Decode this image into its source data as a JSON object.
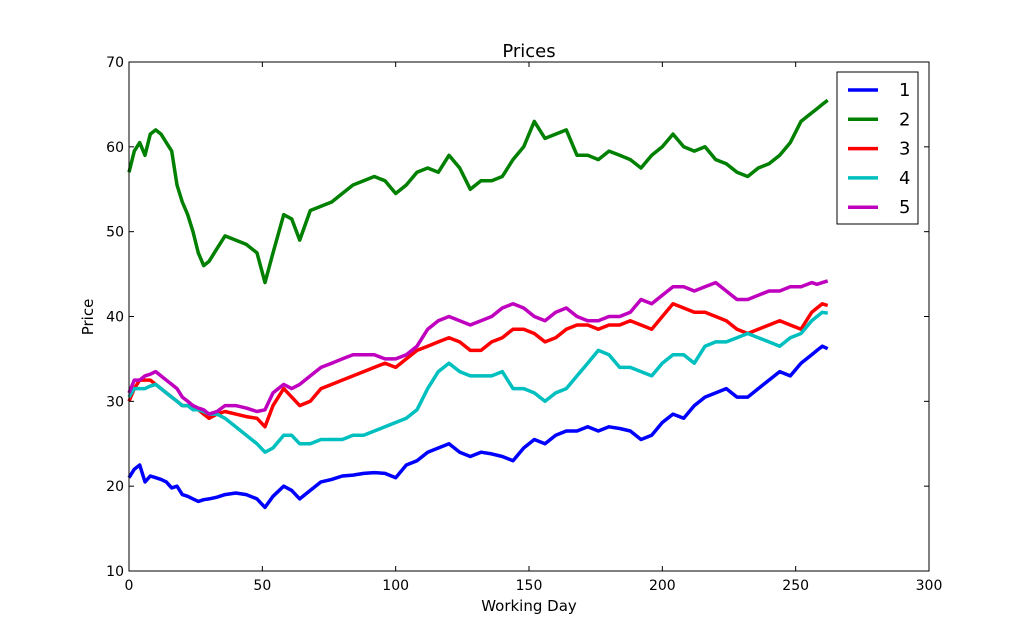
{
  "chart_data": {
    "type": "line",
    "title": "Prices",
    "xlabel": "Working Day",
    "ylabel": "Price",
    "xlim": [
      0,
      300
    ],
    "ylim": [
      10,
      70
    ],
    "xticks": [
      0,
      50,
      100,
      150,
      200,
      250,
      300
    ],
    "yticks": [
      10,
      20,
      30,
      40,
      50,
      60,
      70
    ],
    "grid": false,
    "legend_position": "top-right",
    "series": [
      {
        "name": "1",
        "color": "#0000ff",
        "x": [
          0,
          2,
          4,
          6,
          8,
          10,
          12,
          14,
          16,
          18,
          20,
          22,
          24,
          26,
          28,
          30,
          33,
          36,
          40,
          44,
          48,
          51,
          54,
          58,
          61,
          64,
          68,
          72,
          76,
          80,
          84,
          88,
          92,
          96,
          100,
          104,
          108,
          112,
          116,
          120,
          124,
          128,
          132,
          136,
          140,
          144,
          148,
          152,
          156,
          160,
          164,
          168,
          172,
          176,
          180,
          184,
          188,
          192,
          196,
          200,
          204,
          208,
          212,
          216,
          220,
          224,
          228,
          232,
          236,
          240,
          244,
          248,
          252,
          256,
          258,
          260,
          262
        ],
        "y": [
          21.0,
          22.0,
          22.5,
          20.5,
          21.2,
          21.0,
          20.8,
          20.5,
          19.8,
          20.0,
          19.0,
          18.8,
          18.5,
          18.2,
          18.4,
          18.5,
          18.7,
          19.0,
          19.2,
          19.0,
          18.5,
          17.5,
          18.8,
          20.0,
          19.5,
          18.5,
          19.5,
          20.5,
          20.8,
          21.2,
          21.3,
          21.5,
          21.6,
          21.5,
          21.0,
          22.5,
          23.0,
          24.0,
          24.5,
          25.0,
          24.0,
          23.5,
          24.0,
          23.8,
          23.5,
          23.0,
          24.5,
          25.5,
          25.0,
          26.0,
          26.5,
          26.5,
          27.0,
          26.5,
          27.0,
          26.8,
          26.5,
          25.5,
          26.0,
          27.5,
          28.5,
          28.0,
          29.5,
          30.5,
          31.0,
          31.5,
          30.5,
          30.5,
          31.5,
          32.5,
          33.5,
          33.0,
          34.5,
          35.5,
          36.0,
          36.5,
          36.2
        ]
      },
      {
        "name": "2",
        "color": "#008000",
        "x": [
          0,
          2,
          4,
          6,
          8,
          10,
          12,
          14,
          16,
          18,
          20,
          22,
          24,
          26,
          28,
          30,
          33,
          36,
          40,
          44,
          48,
          51,
          54,
          58,
          61,
          64,
          68,
          72,
          76,
          80,
          84,
          88,
          92,
          96,
          100,
          104,
          108,
          112,
          116,
          120,
          124,
          128,
          132,
          136,
          140,
          144,
          148,
          152,
          156,
          160,
          164,
          168,
          172,
          176,
          180,
          184,
          188,
          192,
          196,
          200,
          204,
          208,
          212,
          216,
          220,
          224,
          228,
          232,
          236,
          240,
          244,
          248,
          252,
          256,
          258,
          260,
          262
        ],
        "y": [
          57.0,
          59.5,
          60.5,
          59.0,
          61.5,
          62.0,
          61.5,
          60.5,
          59.5,
          55.5,
          53.5,
          52.0,
          50.0,
          47.5,
          46.0,
          46.5,
          48.0,
          49.5,
          49.0,
          48.5,
          47.5,
          44.0,
          47.5,
          52.0,
          51.5,
          49.0,
          52.5,
          53.0,
          53.5,
          54.5,
          55.5,
          56.0,
          56.5,
          56.0,
          54.5,
          55.5,
          57.0,
          57.5,
          57.0,
          59.0,
          57.5,
          55.0,
          56.0,
          56.0,
          56.5,
          58.5,
          60.0,
          63.0,
          61.0,
          61.5,
          62.0,
          59.0,
          59.0,
          58.5,
          59.5,
          59.0,
          58.5,
          57.5,
          59.0,
          60.0,
          61.5,
          60.0,
          59.5,
          60.0,
          58.5,
          58.0,
          57.0,
          56.5,
          57.5,
          58.0,
          59.0,
          60.5,
          63.0,
          64.0,
          64.5,
          65.0,
          65.5
        ]
      },
      {
        "name": "3",
        "color": "#ff0000",
        "x": [
          0,
          2,
          4,
          6,
          8,
          10,
          12,
          14,
          16,
          18,
          20,
          22,
          24,
          26,
          28,
          30,
          33,
          36,
          40,
          44,
          48,
          51,
          54,
          58,
          61,
          64,
          68,
          72,
          76,
          80,
          84,
          88,
          92,
          96,
          100,
          104,
          108,
          112,
          116,
          120,
          124,
          128,
          132,
          136,
          140,
          144,
          148,
          152,
          156,
          160,
          164,
          168,
          172,
          176,
          180,
          184,
          188,
          192,
          196,
          200,
          204,
          208,
          212,
          216,
          220,
          224,
          228,
          232,
          236,
          240,
          244,
          248,
          252,
          256,
          258,
          260,
          262
        ],
        "y": [
          30.0,
          31.5,
          32.5,
          32.5,
          32.5,
          32.0,
          31.5,
          31.0,
          30.5,
          30.0,
          29.5,
          29.5,
          29.5,
          29.0,
          28.5,
          28.0,
          28.5,
          28.8,
          28.5,
          28.2,
          28.0,
          27.0,
          29.5,
          31.5,
          30.5,
          29.5,
          30.0,
          31.5,
          32.0,
          32.5,
          33.0,
          33.5,
          34.0,
          34.5,
          34.0,
          35.0,
          36.0,
          36.5,
          37.0,
          37.5,
          37.0,
          36.0,
          36.0,
          37.0,
          37.5,
          38.5,
          38.5,
          38.0,
          37.0,
          37.5,
          38.5,
          39.0,
          39.0,
          38.5,
          39.0,
          39.0,
          39.5,
          39.0,
          38.5,
          40.0,
          41.5,
          41.0,
          40.5,
          40.5,
          40.0,
          39.5,
          38.5,
          38.0,
          38.5,
          39.0,
          39.5,
          39.0,
          38.5,
          40.5,
          41.0,
          41.5,
          41.3
        ]
      },
      {
        "name": "4",
        "color": "#00bfbf",
        "x": [
          0,
          2,
          4,
          6,
          8,
          10,
          12,
          14,
          16,
          18,
          20,
          22,
          24,
          26,
          28,
          30,
          33,
          36,
          40,
          44,
          48,
          51,
          54,
          58,
          61,
          64,
          68,
          72,
          76,
          80,
          84,
          88,
          92,
          96,
          100,
          104,
          108,
          112,
          116,
          120,
          124,
          128,
          132,
          136,
          140,
          144,
          148,
          152,
          156,
          160,
          164,
          168,
          172,
          176,
          180,
          184,
          188,
          192,
          196,
          200,
          204,
          208,
          212,
          216,
          220,
          224,
          228,
          232,
          236,
          240,
          244,
          248,
          252,
          256,
          258,
          260,
          262
        ],
        "y": [
          30.5,
          31.5,
          31.5,
          31.5,
          31.8,
          32.0,
          31.5,
          31.0,
          30.5,
          30.0,
          29.5,
          29.5,
          29.0,
          29.0,
          28.8,
          28.5,
          28.5,
          28.0,
          27.0,
          26.0,
          25.0,
          24.0,
          24.5,
          26.0,
          26.0,
          25.0,
          25.0,
          25.5,
          25.5,
          25.5,
          26.0,
          26.0,
          26.5,
          27.0,
          27.5,
          28.0,
          29.0,
          31.5,
          33.5,
          34.5,
          33.5,
          33.0,
          33.0,
          33.0,
          33.5,
          31.5,
          31.5,
          31.0,
          30.0,
          31.0,
          31.5,
          33.0,
          34.5,
          36.0,
          35.5,
          34.0,
          34.0,
          33.5,
          33.0,
          34.5,
          35.5,
          35.5,
          34.5,
          36.5,
          37.0,
          37.0,
          37.5,
          38.0,
          37.5,
          37.0,
          36.5,
          37.5,
          38.0,
          39.5,
          40.0,
          40.5,
          40.4
        ]
      },
      {
        "name": "5",
        "color": "#bf00bf",
        "x": [
          0,
          2,
          4,
          6,
          8,
          10,
          12,
          14,
          16,
          18,
          20,
          22,
          24,
          26,
          28,
          30,
          33,
          36,
          40,
          44,
          48,
          51,
          54,
          58,
          61,
          64,
          68,
          72,
          76,
          80,
          84,
          88,
          92,
          96,
          100,
          104,
          108,
          112,
          116,
          120,
          124,
          128,
          132,
          136,
          140,
          144,
          148,
          152,
          156,
          160,
          164,
          168,
          172,
          176,
          180,
          184,
          188,
          192,
          196,
          200,
          204,
          208,
          212,
          216,
          220,
          224,
          228,
          232,
          236,
          240,
          244,
          248,
          252,
          256,
          258,
          260,
          262
        ],
        "y": [
          31.0,
          32.5,
          32.5,
          33.0,
          33.2,
          33.5,
          33.0,
          32.5,
          32.0,
          31.5,
          30.5,
          30.0,
          29.5,
          29.2,
          29.0,
          28.5,
          28.8,
          29.5,
          29.5,
          29.2,
          28.8,
          29.0,
          31.0,
          32.0,
          31.5,
          32.0,
          33.0,
          34.0,
          34.5,
          35.0,
          35.5,
          35.5,
          35.5,
          35.0,
          35.0,
          35.5,
          36.5,
          38.5,
          39.5,
          40.0,
          39.5,
          39.0,
          39.5,
          40.0,
          41.0,
          41.5,
          41.0,
          40.0,
          39.5,
          40.5,
          41.0,
          40.0,
          39.5,
          39.5,
          40.0,
          40.0,
          40.5,
          42.0,
          41.5,
          42.5,
          43.5,
          43.5,
          43.0,
          43.5,
          44.0,
          43.0,
          42.0,
          42.0,
          42.5,
          43.0,
          43.0,
          43.5,
          43.5,
          44.0,
          43.8,
          44.0,
          44.2
        ]
      }
    ]
  }
}
